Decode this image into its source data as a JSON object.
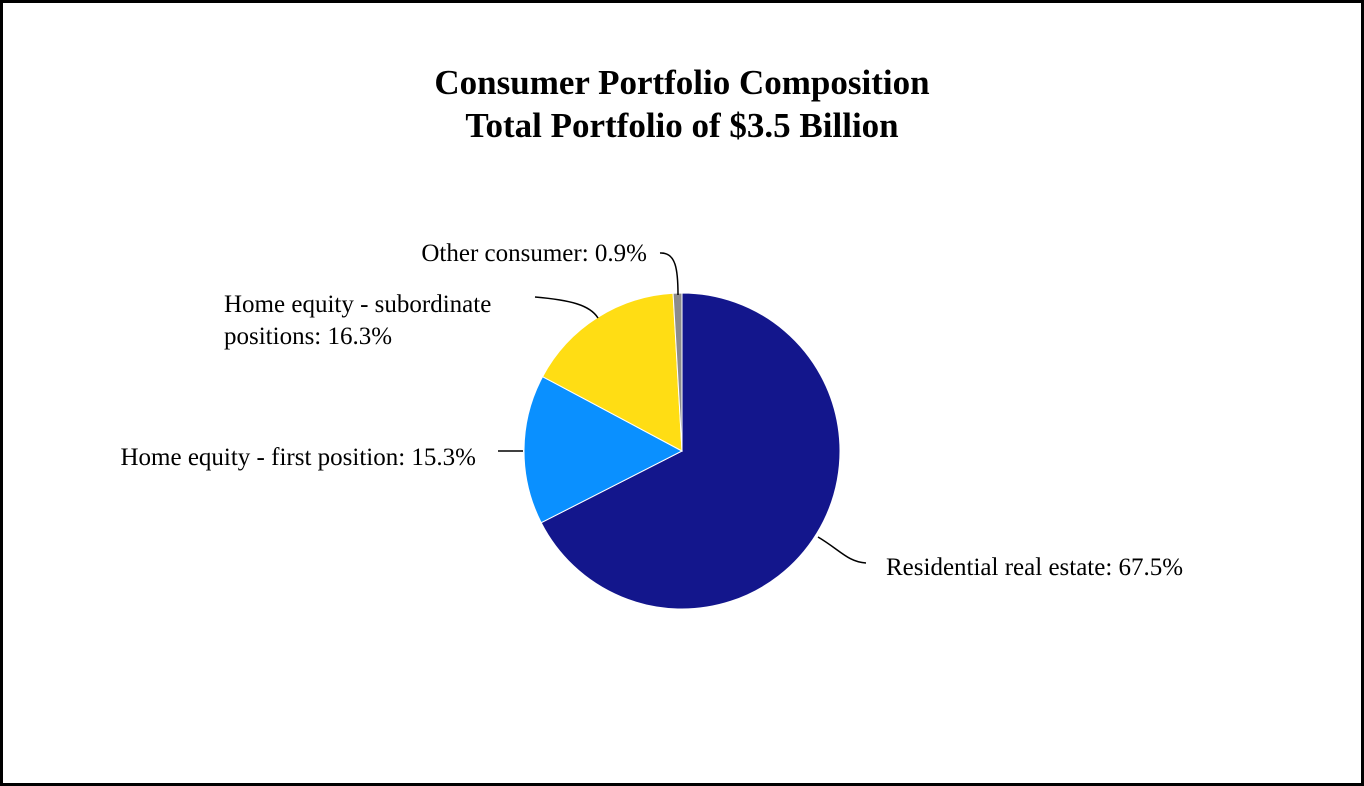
{
  "chart_data": {
    "type": "pie",
    "title": [
      "Consumer Portfolio Composition",
      "Total Portfolio of $3.5 Billion"
    ],
    "categories": [
      "Residential real estate",
      "Home equity - first position",
      "Home equity - subordinate positions",
      "Other consumer"
    ],
    "values": [
      67.5,
      15.3,
      16.3,
      0.9
    ],
    "colors": [
      "#13168C",
      "#0A90FF",
      "#FFDD14",
      "#8C8C8C"
    ],
    "labels": [
      [
        "Residential real estate: 67.5%"
      ],
      [
        "Home equity - first position: 15.3%"
      ],
      [
        "Home equity - subordinate",
        "positions: 16.3%"
      ],
      [
        "Other consumer: 0.9%"
      ]
    ],
    "legend": "none"
  }
}
